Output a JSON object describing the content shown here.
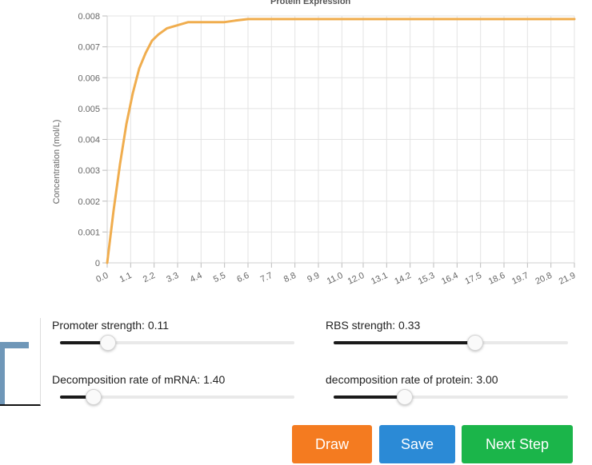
{
  "chart_data": {
    "type": "line",
    "title": "Protein Expression",
    "xlabel": "",
    "ylabel": "Concentration (mol/L)",
    "ylim": [
      0,
      0.008
    ],
    "y_ticks": [
      "0",
      "0.001",
      "0.002",
      "0.003",
      "0.004",
      "0.005",
      "0.006",
      "0.007",
      "0.008"
    ],
    "x_ticks": [
      "0.0",
      "1.1",
      "2.2",
      "3.3",
      "4.4",
      "5.5",
      "6.6",
      "7.7",
      "8.8",
      "9.9",
      "11.0",
      "12.0",
      "13.1",
      "14.2",
      "15.3",
      "16.4",
      "17.5",
      "18.6",
      "19.7",
      "20.8",
      "21.9"
    ],
    "xlim": [
      0,
      21.9
    ],
    "grid": true,
    "series": [
      {
        "color": "#f0ad4e",
        "x": [
          0,
          0.3,
          0.6,
          0.9,
          1.2,
          1.5,
          1.8,
          2.1,
          2.4,
          2.8,
          3.3,
          3.8,
          4.4,
          5.0,
          5.5,
          6.0,
          6.6,
          7.7,
          9.9,
          15.3,
          21.9
        ],
        "y": [
          0,
          0.0017,
          0.0032,
          0.0045,
          0.0055,
          0.0063,
          0.0068,
          0.0072,
          0.0074,
          0.0076,
          0.0077,
          0.0078,
          0.0078,
          0.0078,
          0.0078,
          0.00785,
          0.0079,
          0.0079,
          0.0079,
          0.0079,
          0.0079
        ]
      }
    ]
  },
  "sliders": {
    "promoter": {
      "label": "Promoter strength: 0.11",
      "fraction": 0.2
    },
    "rbs": {
      "label": "RBS strength: 0.33",
      "fraction": 0.6
    },
    "mrna_decay": {
      "label": "Decomposition rate of mRNA: 1.40",
      "fraction": 0.14
    },
    "protein_decay": {
      "label": "decomposition rate of protein: 3.00",
      "fraction": 0.3
    }
  },
  "buttons": {
    "draw": "Draw",
    "save": "Save",
    "next": "Next Step"
  }
}
